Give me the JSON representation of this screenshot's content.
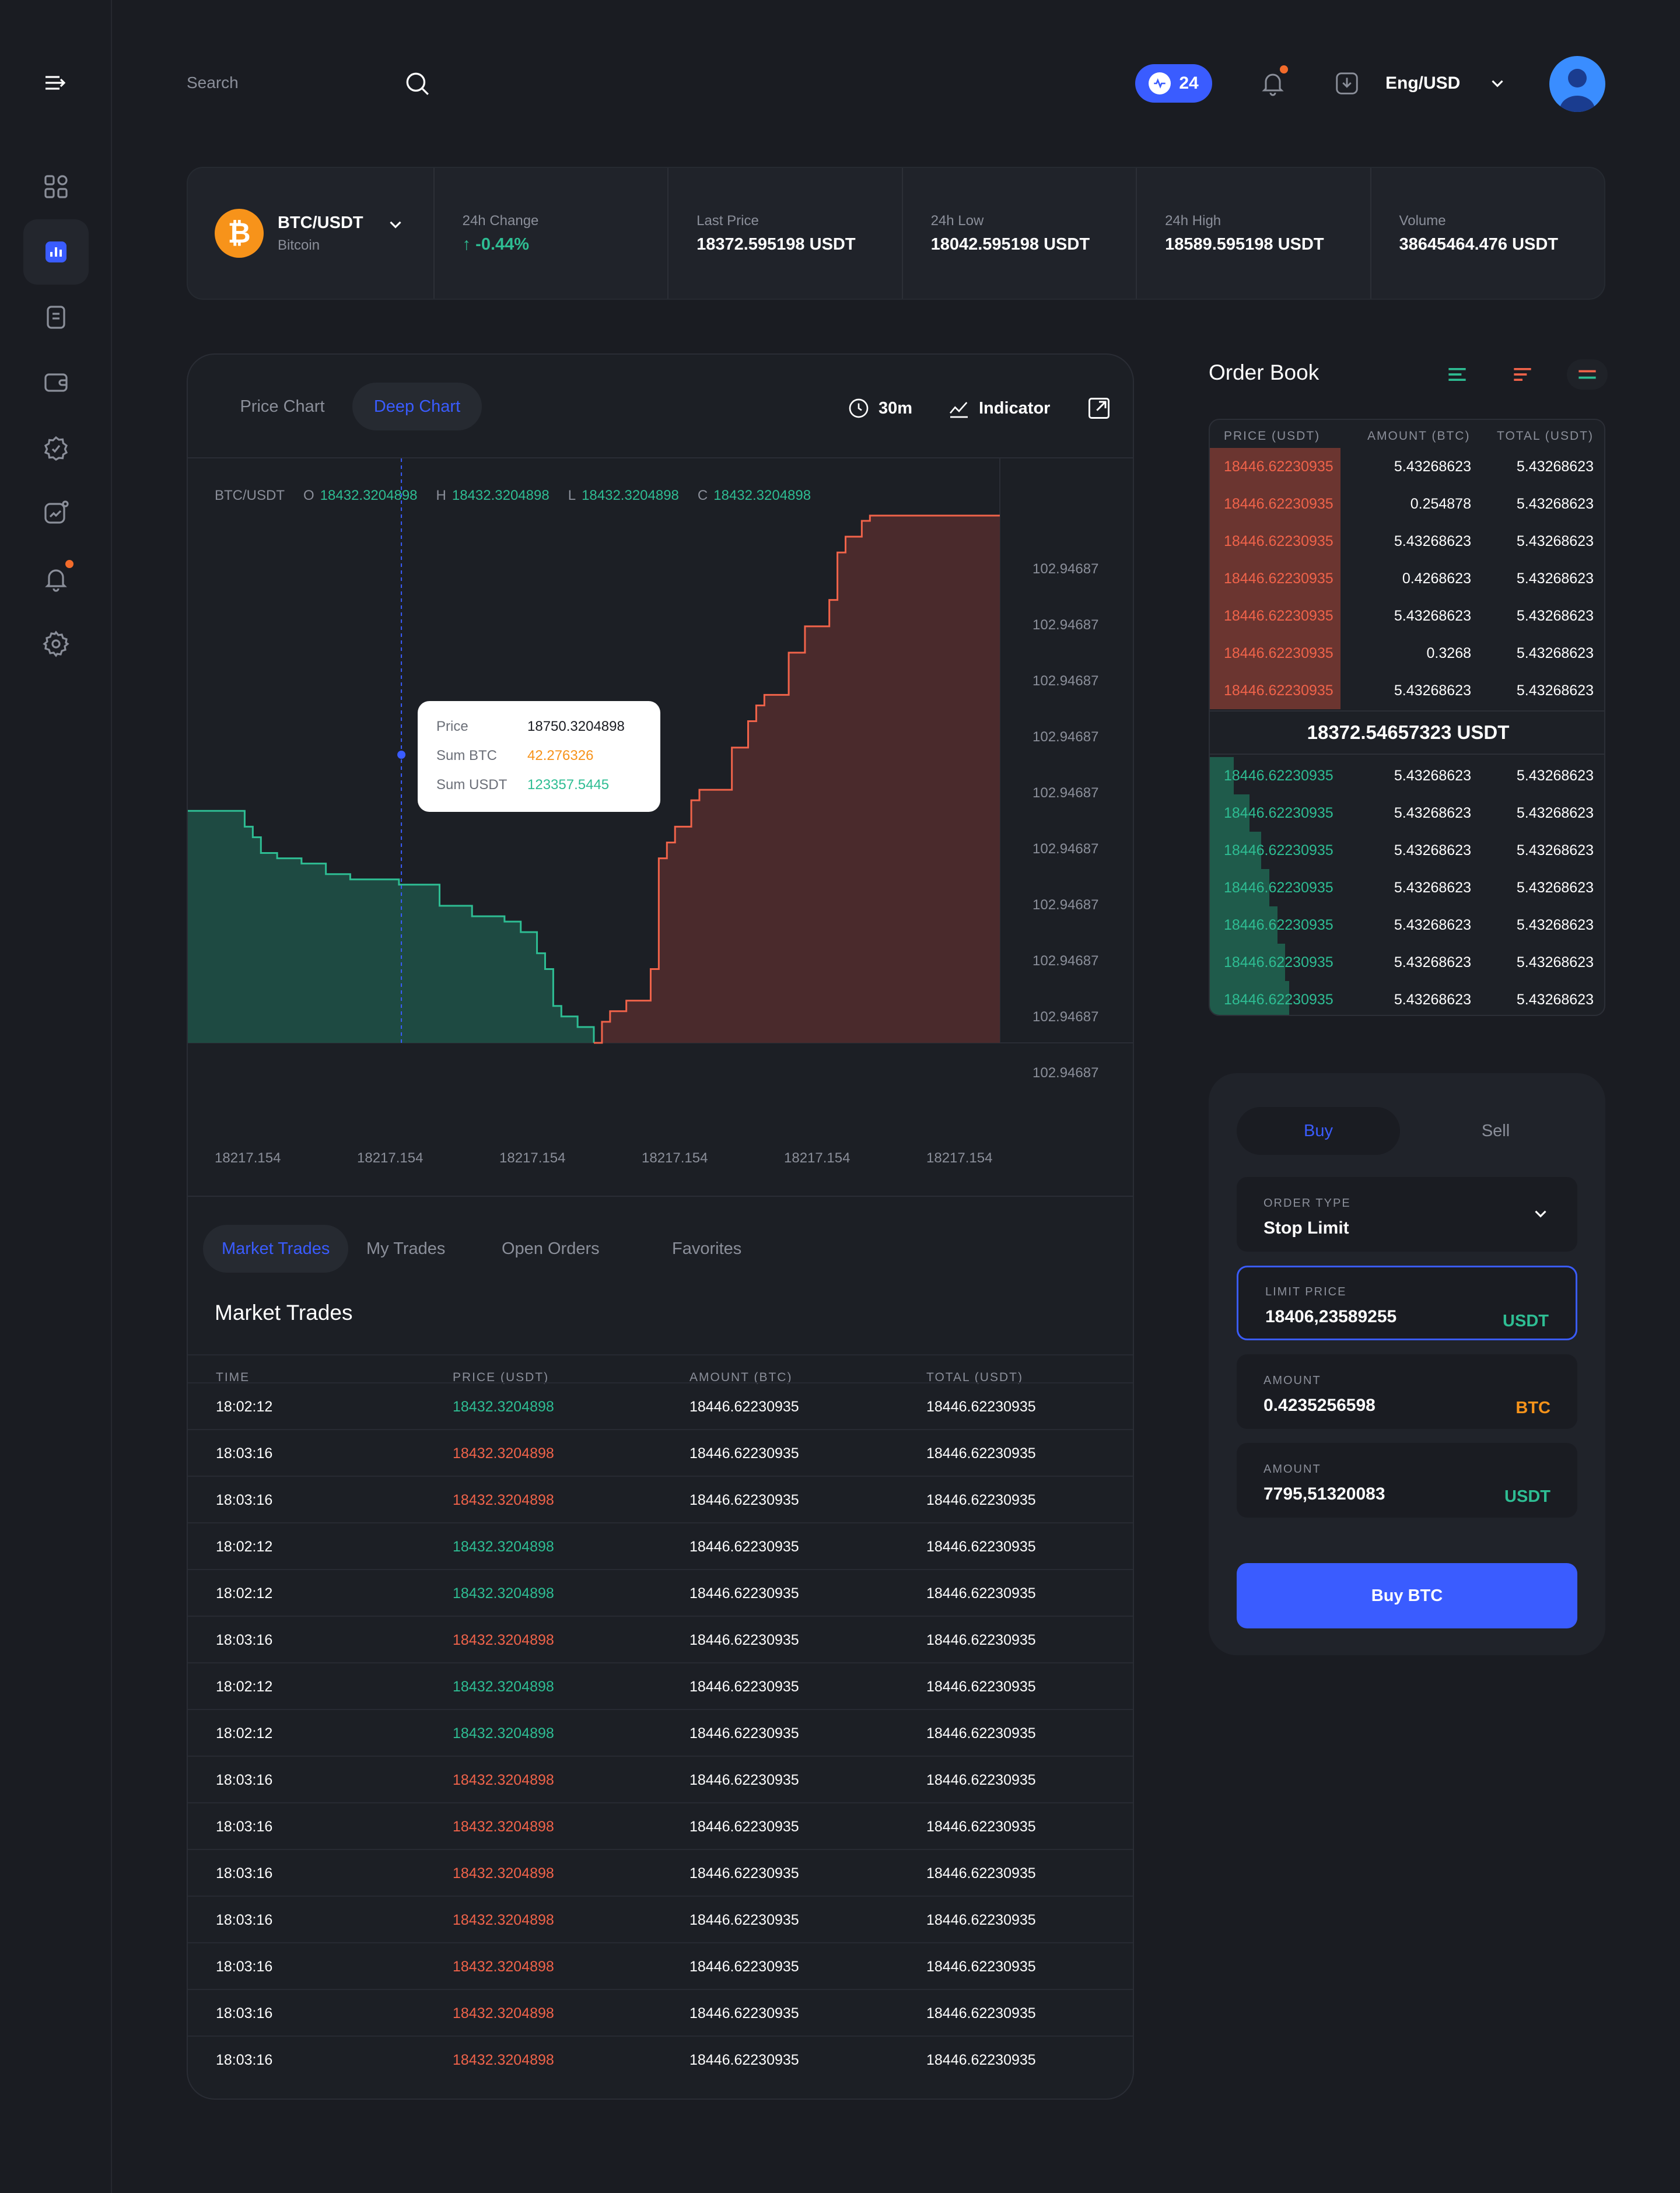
{
  "header": {
    "search_placeholder": "Search",
    "activity_count": "24",
    "language_currency": "Eng/USD"
  },
  "ticker": {
    "pair": "BTC/USDT",
    "coin_name": "Bitcoin",
    "coin_symbol": "₿",
    "change_label": "24h Change",
    "change_arrow": "↑",
    "change_value": "-0.44%",
    "last_price_label": "Last Price",
    "last_price": "18372.595198 USDT",
    "low_label": "24h Low",
    "low_value": "18042.595198 USDT",
    "high_label": "24h High",
    "high_value": "18589.595198 USDT",
    "volume_label": "Volume",
    "volume_value": "38645464.476 USDT"
  },
  "chart_panel": {
    "tabs": [
      "Price Chart",
      "Deep Chart"
    ],
    "active_tab": "Deep Chart",
    "interval": "30m",
    "indicator_label": "Indicator",
    "ohlc": {
      "pair": "BTC/USDT",
      "o_label": "O",
      "o": "18432.3204898",
      "h_label": "H",
      "h": "18432.3204898",
      "l_label": "L",
      "l": "18432.3204898",
      "c_label": "C",
      "c": "18432.3204898"
    },
    "tooltip": {
      "price_label": "Price",
      "price": "18750.3204898",
      "sum_btc_label": "Sum BTC",
      "sum_btc": "42.276326",
      "sum_usdt_label": "Sum USDT",
      "sum_usdt": "123357.5445"
    }
  },
  "chart_data": {
    "type": "area",
    "title": "",
    "y_tick_labels": [
      "102.94687",
      "102.94687",
      "102.94687",
      "102.94687",
      "102.94687",
      "102.94687",
      "102.94687",
      "102.94687",
      "102.94687",
      "102.94687"
    ],
    "x_tick_labels": [
      "18217.154",
      "18217.154",
      "18217.154",
      "18217.154",
      "18217.154",
      "18217.154"
    ],
    "series": [
      {
        "name": "",
        "color": "#2ebd93",
        "x": [
          0,
          0.04,
          0.07,
          0.08,
          0.09,
          0.11,
          0.14,
          0.17,
          0.2,
          0.26,
          0.29,
          0.31,
          0.35,
          0.39,
          0.41,
          0.43,
          0.44,
          0.45,
          0.46,
          0.48,
          0.5
        ],
        "y": [
          0.44,
          0.44,
          0.41,
          0.39,
          0.36,
          0.35,
          0.34,
          0.32,
          0.31,
          0.3,
          0.3,
          0.26,
          0.24,
          0.23,
          0.21,
          0.17,
          0.14,
          0.07,
          0.05,
          0.03,
          0.0
        ]
      },
      {
        "name": "",
        "color": "#f0634a",
        "x": [
          0.5,
          0.51,
          0.52,
          0.54,
          0.57,
          0.58,
          0.59,
          0.6,
          0.62,
          0.63,
          0.67,
          0.69,
          0.7,
          0.71,
          0.74,
          0.76,
          0.79,
          0.8,
          0.81,
          0.83,
          0.84,
          0.88,
          1.0
        ],
        "y": [
          0.0,
          0.04,
          0.06,
          0.08,
          0.14,
          0.35,
          0.38,
          0.41,
          0.46,
          0.48,
          0.56,
          0.61,
          0.64,
          0.66,
          0.74,
          0.79,
          0.84,
          0.93,
          0.96,
          0.99,
          1.0,
          1.0,
          1.0
        ]
      }
    ]
  },
  "trades": {
    "tabs": [
      "Market Trades",
      "My Trades",
      "Open Orders",
      "Favorites"
    ],
    "active_tab": "Market Trades",
    "title": "Market Trades",
    "columns": [
      "TIME",
      "PRICE (USDT)",
      "AMOUNT (BTC)",
      "TOTAL (USDT)"
    ],
    "rows": [
      {
        "time": "18:02:12",
        "price": "18432.3204898",
        "side": "buy",
        "amount": "18446.62230935",
        "total": "18446.62230935"
      },
      {
        "time": "18:03:16",
        "price": "18432.3204898",
        "side": "sell",
        "amount": "18446.62230935",
        "total": "18446.62230935"
      },
      {
        "time": "18:03:16",
        "price": "18432.3204898",
        "side": "sell",
        "amount": "18446.62230935",
        "total": "18446.62230935"
      },
      {
        "time": "18:02:12",
        "price": "18432.3204898",
        "side": "buy",
        "amount": "18446.62230935",
        "total": "18446.62230935"
      },
      {
        "time": "18:02:12",
        "price": "18432.3204898",
        "side": "buy",
        "amount": "18446.62230935",
        "total": "18446.62230935"
      },
      {
        "time": "18:03:16",
        "price": "18432.3204898",
        "side": "sell",
        "amount": "18446.62230935",
        "total": "18446.62230935"
      },
      {
        "time": "18:02:12",
        "price": "18432.3204898",
        "side": "buy",
        "amount": "18446.62230935",
        "total": "18446.62230935"
      },
      {
        "time": "18:02:12",
        "price": "18432.3204898",
        "side": "buy",
        "amount": "18446.62230935",
        "total": "18446.62230935"
      },
      {
        "time": "18:03:16",
        "price": "18432.3204898",
        "side": "sell",
        "amount": "18446.62230935",
        "total": "18446.62230935"
      },
      {
        "time": "18:03:16",
        "price": "18432.3204898",
        "side": "sell",
        "amount": "18446.62230935",
        "total": "18446.62230935"
      },
      {
        "time": "18:03:16",
        "price": "18432.3204898",
        "side": "sell",
        "amount": "18446.62230935",
        "total": "18446.62230935"
      },
      {
        "time": "18:03:16",
        "price": "18432.3204898",
        "side": "sell",
        "amount": "18446.62230935",
        "total": "18446.62230935"
      },
      {
        "time": "18:03:16",
        "price": "18432.3204898",
        "side": "sell",
        "amount": "18446.62230935",
        "total": "18446.62230935"
      },
      {
        "time": "18:03:16",
        "price": "18432.3204898",
        "side": "sell",
        "amount": "18446.62230935",
        "total": "18446.62230935"
      },
      {
        "time": "18:03:16",
        "price": "18432.3204898",
        "side": "sell",
        "amount": "18446.62230935",
        "total": "18446.62230935"
      }
    ]
  },
  "order_book": {
    "title": "Order Book",
    "columns": [
      "PRICE (USDT)",
      "AMOUNT (BTC)",
      "TOTAL (USDT)"
    ],
    "asks": [
      {
        "price": "18446.62230935",
        "amount": "5.43268623",
        "total": "5.43268623",
        "depth": 0.33
      },
      {
        "price": "18446.62230935",
        "amount": "0.254878",
        "total": "5.43268623",
        "depth": 0.33
      },
      {
        "price": "18446.62230935",
        "amount": "5.43268623",
        "total": "5.43268623",
        "depth": 0.33
      },
      {
        "price": "18446.62230935",
        "amount": "0.4268623",
        "total": "5.43268623",
        "depth": 0.33
      },
      {
        "price": "18446.62230935",
        "amount": "5.43268623",
        "total": "5.43268623",
        "depth": 0.33
      },
      {
        "price": "18446.62230935",
        "amount": "0.3268",
        "total": "5.43268623",
        "depth": 0.33
      },
      {
        "price": "18446.62230935",
        "amount": "5.43268623",
        "total": "5.43268623",
        "depth": 0.33
      }
    ],
    "mid_price": "18372.54657323 USDT",
    "bids": [
      {
        "price": "18446.62230935",
        "amount": "5.43268623",
        "total": "5.43268623",
        "depth": 0.06
      },
      {
        "price": "18446.62230935",
        "amount": "5.43268623",
        "total": "5.43268623",
        "depth": 0.1
      },
      {
        "price": "18446.62230935",
        "amount": "5.43268623",
        "total": "5.43268623",
        "depth": 0.13
      },
      {
        "price": "18446.62230935",
        "amount": "5.43268623",
        "total": "5.43268623",
        "depth": 0.15
      },
      {
        "price": "18446.62230935",
        "amount": "5.43268623",
        "total": "5.43268623",
        "depth": 0.17
      },
      {
        "price": "18446.62230935",
        "amount": "5.43268623",
        "total": "5.43268623",
        "depth": 0.19
      },
      {
        "price": "18446.62230935",
        "amount": "5.43268623",
        "total": "5.43268623",
        "depth": 0.2
      }
    ]
  },
  "order_form": {
    "buy_tab": "Buy",
    "sell_tab": "Sell",
    "order_type_label": "ORDER TYPE",
    "order_type_value": "Stop Limit",
    "limit_price_label": "LIMIT PRICE",
    "limit_price_value": "18406,23589255",
    "limit_price_unit": "USDT",
    "amount_btc_label": "AMOUNT",
    "amount_btc_value": "0.4235256598",
    "amount_btc_unit": "BTC",
    "amount_usdt_label": "AMOUNT",
    "amount_usdt_value": "7795,51320083",
    "amount_usdt_unit": "USDT",
    "submit_label": "Buy BTC"
  },
  "colors": {
    "accent": "#3a5cff",
    "buy": "#2ebd93",
    "sell": "#f0634a",
    "bitcoin": "#f7931a"
  }
}
